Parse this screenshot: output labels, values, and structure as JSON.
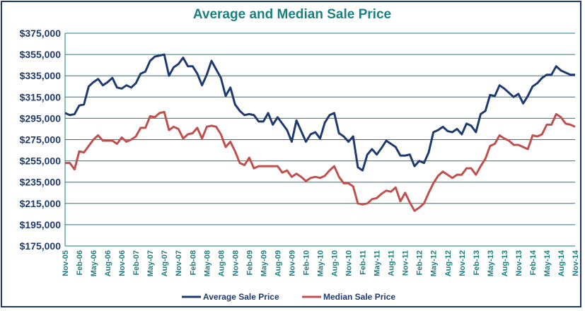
{
  "chart_data": {
    "type": "line",
    "title": "Average and Median Sale Price",
    "xlabel": "",
    "ylabel": "",
    "ylim": [
      175000,
      375000
    ],
    "yticks": [
      "$375,000",
      "$355,000",
      "$335,000",
      "$315,000",
      "$295,000",
      "$275,000",
      "$255,000",
      "$235,000",
      "$215,000",
      "$195,000",
      "$175,000"
    ],
    "xticks": [
      "Nov-05",
      "Feb-06",
      "May-06",
      "Aug-06",
      "Nov-06",
      "Feb-07",
      "May-07",
      "Aug-07",
      "Nov-07",
      "Feb-08",
      "May-08",
      "Aug-08",
      "Nov-08",
      "Feb-09",
      "May-09",
      "Aug-09",
      "Nov-09",
      "Feb-10",
      "May-10",
      "Aug-10",
      "Nov-10",
      "Feb-11",
      "May-11",
      "Aug-11",
      "Nov-11",
      "Feb-12",
      "May-12",
      "Aug-12",
      "Nov-12",
      "Feb-13",
      "May-13",
      "Aug-13",
      "Nov-13",
      "Feb-14",
      "May-14",
      "Aug-14",
      "Nov-14"
    ],
    "grid": true,
    "legend_position": "bottom",
    "series": [
      {
        "name": "Average Sale Price",
        "color": "#1f3a6e",
        "values": [
          300000,
          298000,
          299000,
          307000,
          308000,
          325000,
          329000,
          332000,
          326000,
          329000,
          333000,
          324000,
          323000,
          326000,
          324000,
          328000,
          337000,
          339000,
          349000,
          353000,
          354000,
          355000,
          335000,
          343000,
          346000,
          352000,
          344000,
          344000,
          337000,
          326000,
          336000,
          349000,
          341000,
          333000,
          316000,
          324000,
          308000,
          302000,
          298000,
          299000,
          298000,
          292000,
          292000,
          300000,
          289000,
          296000,
          290000,
          284000,
          273000,
          293000,
          283000,
          273000,
          280000,
          282000,
          276000,
          291000,
          298000,
          300000,
          281000,
          278000,
          273000,
          278000,
          249000,
          246000,
          261000,
          266000,
          261000,
          267000,
          274000,
          271000,
          268000,
          260000,
          260000,
          261000,
          250000,
          255000,
          253000,
          263000,
          282000,
          284000,
          287000,
          283000,
          282000,
          285000,
          280000,
          290000,
          288000,
          282000,
          299000,
          302000,
          317000,
          316000,
          326000,
          323000,
          319000,
          315000,
          318000,
          309000,
          316000,
          325000,
          328000,
          333000,
          336000,
          336000,
          344000,
          340000,
          338000,
          336000,
          336000
        ]
      },
      {
        "name": "Median Sale Price",
        "color": "#c0504d",
        "values": [
          253000,
          253000,
          247000,
          264000,
          263000,
          269000,
          275000,
          279000,
          274000,
          274000,
          274000,
          271000,
          277000,
          273000,
          275000,
          278000,
          286000,
          286000,
          297000,
          296000,
          300000,
          301000,
          284000,
          287000,
          285000,
          276000,
          280000,
          281000,
          286000,
          276000,
          287000,
          288000,
          287000,
          280000,
          268000,
          273000,
          264000,
          253000,
          251000,
          258000,
          248000,
          250000,
          250000,
          250000,
          250000,
          250000,
          244000,
          246000,
          240000,
          243000,
          240000,
          236000,
          239000,
          240000,
          239000,
          241000,
          246000,
          250000,
          240000,
          234000,
          234000,
          231000,
          215000,
          214000,
          215000,
          219000,
          220000,
          224000,
          227000,
          226000,
          230000,
          217000,
          225000,
          216000,
          208000,
          211000,
          215000,
          225000,
          234000,
          241000,
          245000,
          242000,
          239000,
          242000,
          242000,
          248000,
          248000,
          242000,
          250000,
          257000,
          269000,
          271000,
          279000,
          276000,
          274000,
          270000,
          270000,
          268000,
          266000,
          279000,
          278000,
          280000,
          289000,
          289000,
          299000,
          296000,
          290000,
          289000,
          287000
        ]
      }
    ]
  }
}
